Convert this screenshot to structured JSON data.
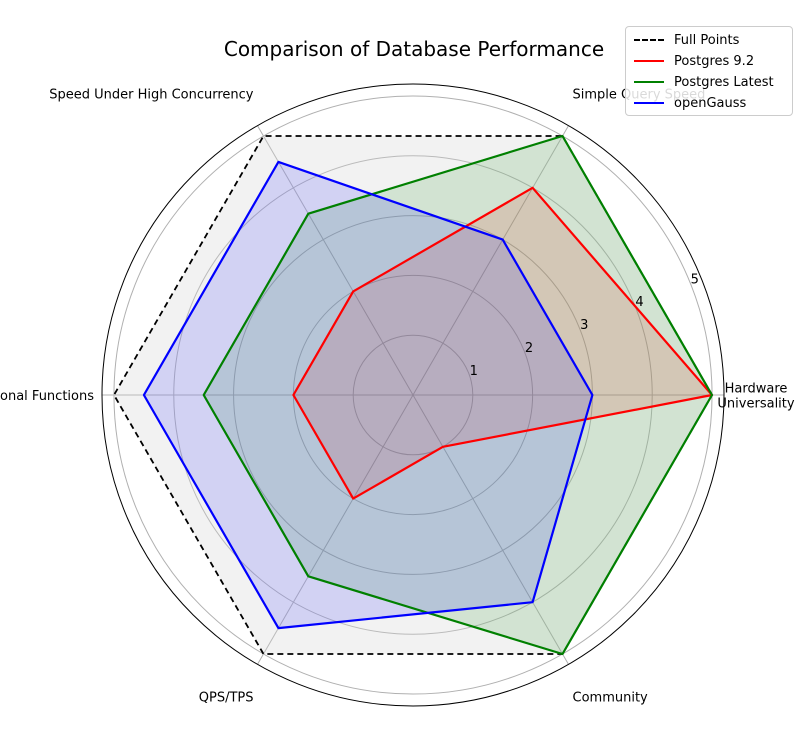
{
  "chart_data": {
    "type": "radar",
    "title": "Comparison of Database Performance",
    "categories": [
      "Hardware\nUniversality",
      "Simple Query Speed",
      "Speed Under High Concurrency",
      "Additional Functions",
      "QPS/TPS",
      "Community"
    ],
    "radial_ticks": [
      1,
      2,
      3,
      4,
      5
    ],
    "rlim": [
      0,
      5.2
    ],
    "grid": true,
    "legend_position": "top-right",
    "series": [
      {
        "name": "Full Points",
        "values": [
          5,
          5,
          5,
          5,
          5,
          5
        ],
        "color": "#000000",
        "style": "dashed",
        "fill": "#d3d3d3"
      },
      {
        "name": "Postgres 9.2",
        "values": [
          5,
          4,
          2,
          2,
          2,
          1
        ],
        "color": "#ff0000",
        "style": "solid",
        "fill": "#ff0000"
      },
      {
        "name": "Postgres Latest",
        "values": [
          5,
          5,
          3.5,
          3.5,
          3.5,
          5
        ],
        "color": "#008000",
        "style": "solid",
        "fill": "#008000"
      },
      {
        "name": "openGauss",
        "values": [
          3,
          3,
          4.5,
          4.5,
          4.5,
          4
        ],
        "color": "#0000ff",
        "style": "solid",
        "fill": "#0000ff"
      }
    ]
  }
}
